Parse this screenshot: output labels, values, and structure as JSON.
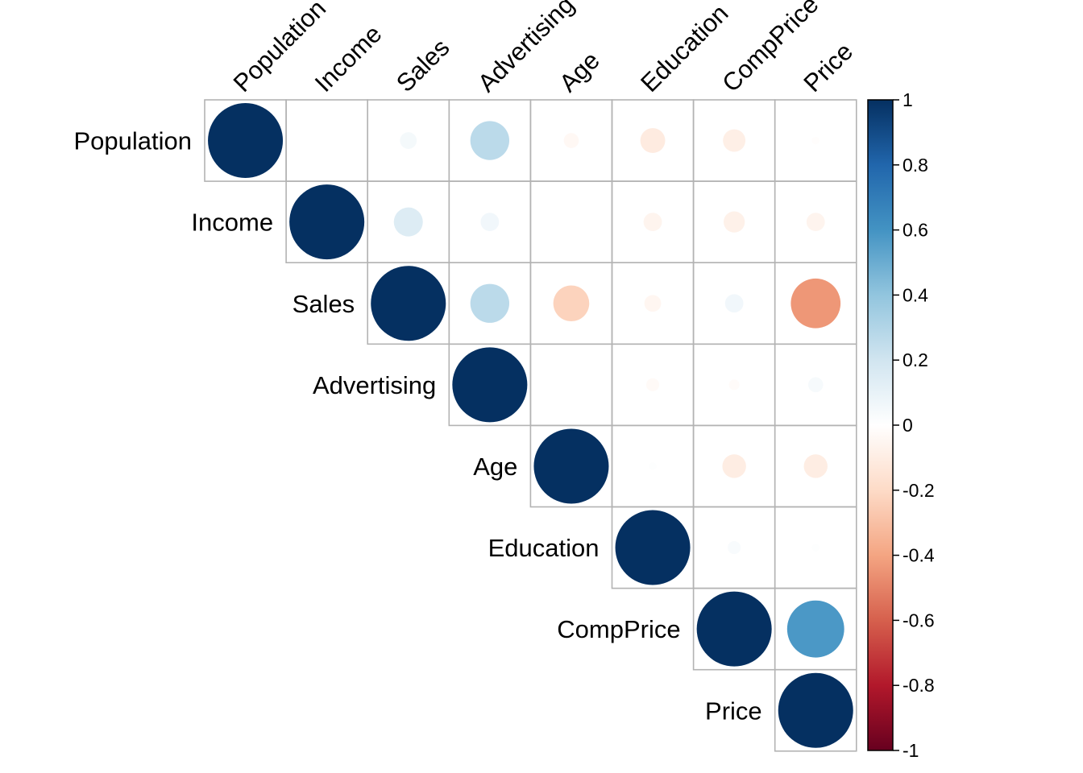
{
  "chart_data": {
    "type": "heatmap",
    "style": "correlation-plot-circles-upper-triangle",
    "variables": [
      "Population",
      "Income",
      "Sales",
      "Advertising",
      "Age",
      "Education",
      "CompPrice",
      "Price"
    ],
    "matrix": [
      [
        1.0,
        0.0,
        0.05,
        0.27,
        -0.04,
        -0.11,
        -0.09,
        -0.01
      ],
      [
        0.0,
        1.0,
        0.15,
        0.06,
        0.0,
        -0.06,
        -0.08,
        -0.06
      ],
      [
        0.05,
        0.15,
        1.0,
        0.27,
        -0.23,
        -0.05,
        0.06,
        -0.44
      ],
      [
        0.27,
        0.06,
        0.27,
        1.0,
        0.0,
        -0.03,
        -0.02,
        0.04
      ],
      [
        -0.04,
        0.0,
        -0.23,
        0.0,
        1.0,
        0.01,
        -0.1,
        -0.1
      ],
      [
        -0.11,
        -0.06,
        -0.05,
        -0.03,
        0.01,
        1.0,
        0.03,
        0.01
      ],
      [
        -0.09,
        -0.08,
        0.06,
        -0.02,
        -0.1,
        0.03,
        1.0,
        0.58
      ],
      [
        -0.01,
        -0.06,
        -0.44,
        0.04,
        -0.1,
        0.01,
        0.58,
        1.0
      ]
    ],
    "colorbar": {
      "range": [
        -1,
        1
      ],
      "tick_labels": [
        "1",
        "0.8",
        "0.6",
        "0.4",
        "0.2",
        "0",
        "-0.2",
        "-0.4",
        "-0.6",
        "-0.8",
        "-1"
      ],
      "colors": [
        "#67001F",
        "#B2182B",
        "#D6604D",
        "#F4A582",
        "#FDDBC7",
        "#FFFFFF",
        "#D1E5F0",
        "#92C5DE",
        "#4393C3",
        "#2166AC",
        "#053061"
      ]
    },
    "grid": true,
    "legend_position": "right"
  }
}
